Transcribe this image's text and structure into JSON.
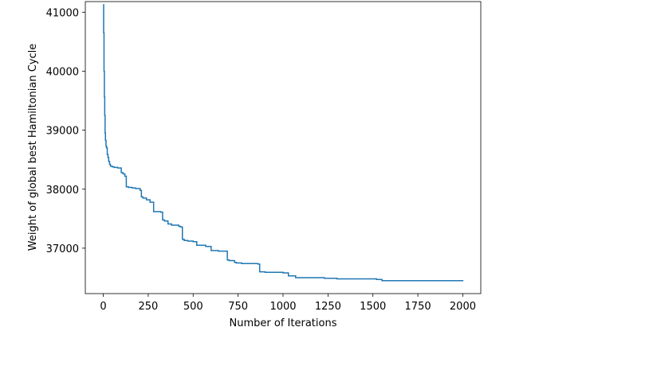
{
  "chart_data": {
    "type": "line",
    "title": "",
    "xlabel": "Number of Iterations",
    "ylabel": "Weight of global best Hamiltonian Cycle",
    "xlim": [
      -100,
      2100
    ],
    "ylim": [
      36230,
      41180
    ],
    "xticks": [
      0,
      250,
      500,
      750,
      1000,
      1250,
      1500,
      1750,
      2000
    ],
    "xtick_labels": [
      "0",
      "250",
      "500",
      "750",
      "1000",
      "1250",
      "1500",
      "1750",
      "2000"
    ],
    "yticks": [
      37000,
      38000,
      39000,
      40000,
      41000
    ],
    "ytick_labels": [
      "37000",
      "38000",
      "39000",
      "40000",
      "41000"
    ],
    "grid": false,
    "legend": "none",
    "line_color": "#1f77b4",
    "series": [
      {
        "x": [
          0,
          2,
          4,
          6,
          8,
          10,
          12,
          15,
          18,
          22,
          26,
          30,
          35,
          40,
          50,
          60,
          80,
          100,
          110,
          120,
          128,
          140,
          160,
          180,
          205,
          212,
          220,
          240,
          260,
          270,
          280,
          320,
          330,
          340,
          360,
          380,
          420,
          430,
          440,
          450,
          470,
          500,
          520,
          570,
          600,
          640,
          680,
          690,
          700,
          730,
          740,
          770,
          860,
          870,
          880,
          900,
          1000,
          1030,
          1070,
          1100,
          1230,
          1300,
          1400,
          1520,
          1550,
          1600,
          1800,
          1990,
          2000
        ],
        "y": [
          41130,
          40650,
          40000,
          39560,
          39250,
          38950,
          38830,
          38730,
          38700,
          38590,
          38540,
          38470,
          38420,
          38390,
          38380,
          38370,
          38360,
          38280,
          38260,
          38220,
          38040,
          38030,
          38020,
          38010,
          37980,
          37870,
          37850,
          37820,
          37780,
          37780,
          37620,
          37610,
          37480,
          37460,
          37410,
          37390,
          37370,
          37360,
          37150,
          37130,
          37120,
          37110,
          37050,
          37030,
          36960,
          36950,
          36950,
          36800,
          36790,
          36760,
          36750,
          36740,
          36730,
          36600,
          36600,
          36590,
          36580,
          36530,
          36500,
          36500,
          36490,
          36480,
          36480,
          36470,
          36450,
          36450,
          36450,
          36450,
          36440
        ]
      }
    ]
  }
}
